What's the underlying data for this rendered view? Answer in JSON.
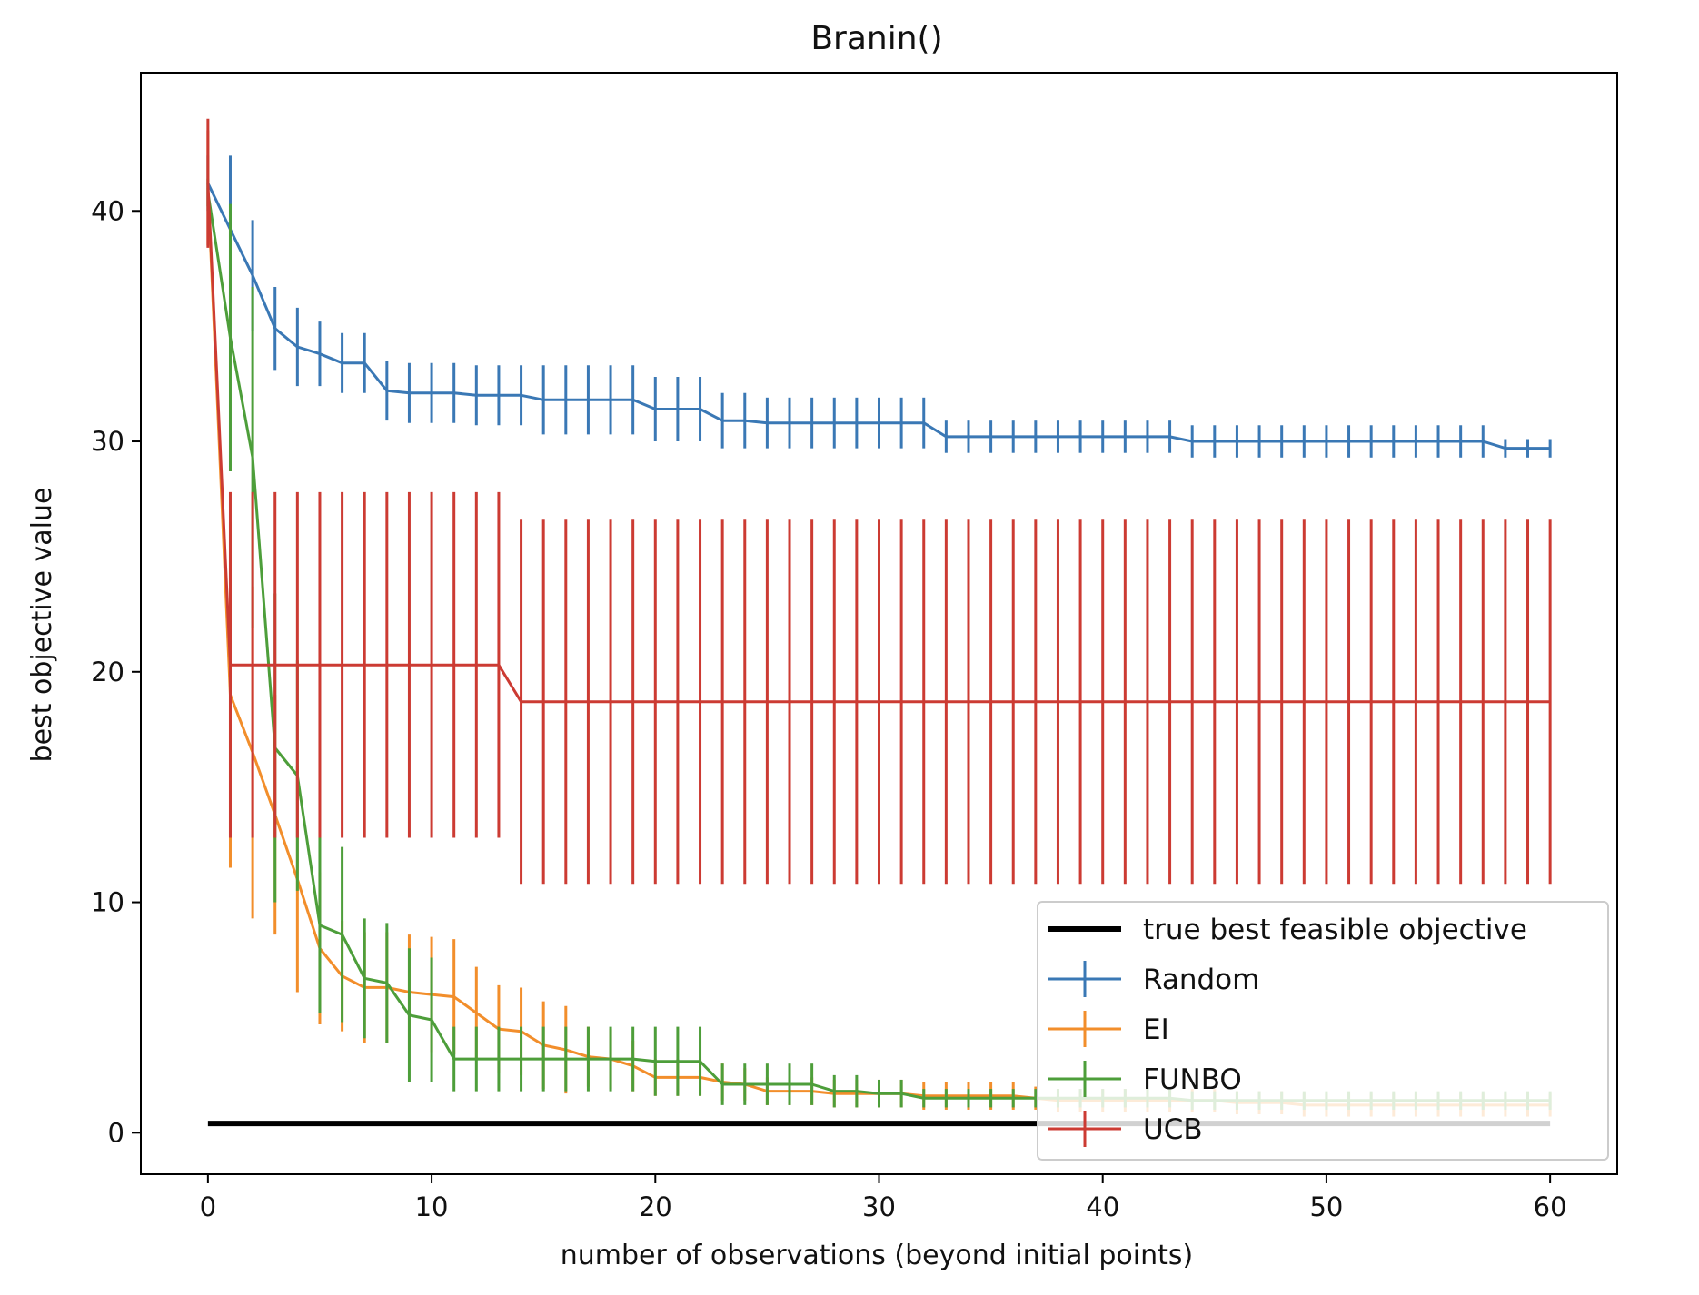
{
  "chart_data": {
    "type": "line",
    "title": "Branin()",
    "xlabel": "number of observations (beyond initial points)",
    "ylabel": "best objective value",
    "xlim": [
      -3,
      63
    ],
    "ylim": [
      -1.8,
      46
    ],
    "xticks": [
      0,
      10,
      20,
      30,
      40,
      50,
      60
    ],
    "yticks": [
      0,
      10,
      20,
      30,
      40
    ],
    "grid": false,
    "legend_position": "lower-right",
    "reference_line": {
      "name": "true best feasible objective",
      "y": 0.4,
      "x_range": [
        0,
        60
      ],
      "color": "#000000"
    },
    "series": [
      {
        "name": "Random",
        "color": "#3a78b5",
        "x": [
          0,
          1,
          2,
          3,
          4,
          5,
          6,
          7,
          8,
          9,
          10,
          11,
          12,
          13,
          14,
          15,
          16,
          17,
          18,
          19,
          20,
          21,
          22,
          23,
          24,
          25,
          26,
          27,
          28,
          29,
          30,
          31,
          32,
          33,
          34,
          35,
          36,
          37,
          38,
          39,
          40,
          41,
          42,
          43,
          44,
          45,
          46,
          47,
          48,
          49,
          50,
          51,
          52,
          53,
          54,
          55,
          56,
          57,
          58,
          59,
          60
        ],
        "y": [
          41.2,
          39.2,
          37.2,
          34.9,
          34.1,
          33.8,
          33.4,
          33.4,
          32.2,
          32.1,
          32.1,
          32.1,
          32.0,
          32.0,
          32.0,
          31.8,
          31.8,
          31.8,
          31.8,
          31.8,
          31.4,
          31.4,
          31.4,
          30.9,
          30.9,
          30.8,
          30.8,
          30.8,
          30.8,
          30.8,
          30.8,
          30.8,
          30.8,
          30.2,
          30.2,
          30.2,
          30.2,
          30.2,
          30.2,
          30.2,
          30.2,
          30.2,
          30.2,
          30.2,
          30.0,
          30.0,
          30.0,
          30.0,
          30.0,
          30.0,
          30.0,
          30.0,
          30.0,
          30.0,
          30.0,
          30.0,
          30.0,
          30.0,
          29.7,
          29.7,
          29.7
        ],
        "err": [
          1.2,
          3.2,
          2.4,
          1.8,
          1.7,
          1.4,
          1.3,
          1.3,
          1.3,
          1.3,
          1.3,
          1.3,
          1.3,
          1.3,
          1.3,
          1.5,
          1.5,
          1.5,
          1.5,
          1.5,
          1.4,
          1.4,
          1.4,
          1.2,
          1.2,
          1.1,
          1.1,
          1.1,
          1.1,
          1.1,
          1.1,
          1.1,
          1.1,
          0.7,
          0.7,
          0.7,
          0.7,
          0.7,
          0.7,
          0.7,
          0.7,
          0.7,
          0.7,
          0.7,
          0.7,
          0.7,
          0.7,
          0.7,
          0.7,
          0.7,
          0.7,
          0.7,
          0.7,
          0.7,
          0.7,
          0.7,
          0.7,
          0.7,
          0.4,
          0.4,
          0.4
        ]
      },
      {
        "name": "EI",
        "color": "#f28e2b",
        "x": [
          0,
          1,
          2,
          3,
          4,
          5,
          6,
          7,
          8,
          9,
          10,
          11,
          12,
          13,
          14,
          15,
          16,
          17,
          18,
          19,
          20,
          21,
          22,
          23,
          24,
          25,
          26,
          27,
          28,
          29,
          30,
          31,
          32,
          33,
          34,
          35,
          36,
          37,
          38,
          39,
          40,
          41,
          42,
          43,
          44,
          45,
          46,
          47,
          48,
          49,
          50,
          51,
          52,
          53,
          54,
          55,
          56,
          57,
          58,
          59,
          60
        ],
        "y": [
          41.0,
          19.0,
          16.5,
          13.8,
          11.0,
          8.0,
          6.8,
          6.3,
          6.3,
          6.1,
          6.0,
          5.9,
          5.2,
          4.5,
          4.4,
          3.8,
          3.6,
          3.3,
          3.2,
          2.9,
          2.4,
          2.4,
          2.4,
          2.2,
          2.1,
          1.8,
          1.8,
          1.8,
          1.7,
          1.7,
          1.7,
          1.7,
          1.6,
          1.6,
          1.6,
          1.6,
          1.6,
          1.5,
          1.4,
          1.4,
          1.4,
          1.4,
          1.4,
          1.4,
          1.4,
          1.4,
          1.3,
          1.3,
          1.3,
          1.2,
          1.2,
          1.2,
          1.2,
          1.2,
          1.2,
          1.2,
          1.2,
          1.2,
          1.2,
          1.2,
          1.2
        ],
        "err": [
          2.5,
          7.5,
          7.2,
          5.2,
          4.9,
          3.3,
          2.4,
          2.4,
          2.4,
          2.5,
          2.5,
          2.5,
          2.0,
          1.9,
          1.9,
          1.9,
          1.9,
          1.3,
          1.3,
          1.1,
          0.8,
          0.8,
          0.8,
          0.8,
          0.7,
          0.6,
          0.6,
          0.6,
          0.6,
          0.6,
          0.6,
          0.6,
          0.6,
          0.6,
          0.6,
          0.6,
          0.6,
          0.5,
          0.5,
          0.5,
          0.5,
          0.5,
          0.5,
          0.5,
          0.5,
          0.5,
          0.5,
          0.5,
          0.5,
          0.5,
          0.5,
          0.5,
          0.5,
          0.5,
          0.5,
          0.5,
          0.5,
          0.5,
          0.5,
          0.5,
          0.5
        ]
      },
      {
        "name": "FUNBO",
        "color": "#4d9e3a",
        "x": [
          0,
          1,
          2,
          3,
          4,
          5,
          6,
          7,
          8,
          9,
          10,
          11,
          12,
          13,
          14,
          15,
          16,
          17,
          18,
          19,
          20,
          21,
          22,
          23,
          24,
          25,
          26,
          27,
          28,
          29,
          30,
          31,
          32,
          33,
          34,
          35,
          36,
          37,
          38,
          39,
          40,
          41,
          42,
          43,
          44,
          45,
          46,
          47,
          48,
          49,
          50,
          51,
          52,
          53,
          54,
          55,
          56,
          57,
          58,
          59,
          60
        ],
        "y": [
          40.8,
          34.5,
          29.3,
          16.7,
          15.5,
          9.0,
          8.6,
          6.7,
          6.5,
          5.1,
          4.9,
          3.2,
          3.2,
          3.2,
          3.2,
          3.2,
          3.2,
          3.2,
          3.2,
          3.2,
          3.1,
          3.1,
          3.1,
          2.1,
          2.1,
          2.1,
          2.1,
          2.1,
          1.8,
          1.8,
          1.7,
          1.7,
          1.5,
          1.5,
          1.5,
          1.5,
          1.5,
          1.5,
          1.5,
          1.5,
          1.5,
          1.5,
          1.5,
          1.5,
          1.4,
          1.4,
          1.4,
          1.4,
          1.4,
          1.4,
          1.4,
          1.4,
          1.4,
          1.4,
          1.4,
          1.4,
          1.4,
          1.4,
          1.4,
          1.4,
          1.4
        ],
        "err": [
          0.6,
          5.8,
          7.4,
          6.7,
          5.0,
          3.8,
          3.8,
          2.6,
          2.6,
          2.9,
          2.7,
          1.4,
          1.4,
          1.4,
          1.4,
          1.4,
          1.4,
          1.4,
          1.4,
          1.4,
          1.5,
          1.5,
          1.5,
          0.9,
          0.9,
          0.9,
          0.9,
          0.9,
          0.7,
          0.7,
          0.6,
          0.6,
          0.4,
          0.4,
          0.4,
          0.4,
          0.4,
          0.4,
          0.4,
          0.4,
          0.4,
          0.4,
          0.4,
          0.4,
          0.4,
          0.4,
          0.4,
          0.4,
          0.4,
          0.4,
          0.4,
          0.4,
          0.4,
          0.4,
          0.4,
          0.4,
          0.4,
          0.4,
          0.4,
          0.4,
          0.4
        ]
      },
      {
        "name": "UCB",
        "color": "#cc3b33",
        "x": [
          0,
          1,
          2,
          3,
          4,
          5,
          6,
          7,
          8,
          9,
          10,
          11,
          12,
          13,
          14,
          15,
          16,
          17,
          18,
          19,
          20,
          21,
          22,
          23,
          24,
          25,
          26,
          27,
          28,
          29,
          30,
          31,
          32,
          33,
          34,
          35,
          36,
          37,
          38,
          39,
          40,
          41,
          42,
          43,
          44,
          45,
          46,
          47,
          48,
          49,
          50,
          51,
          52,
          53,
          54,
          55,
          56,
          57,
          58,
          59,
          60
        ],
        "y": [
          41.2,
          20.3,
          20.3,
          20.3,
          20.3,
          20.3,
          20.3,
          20.3,
          20.3,
          20.3,
          20.3,
          20.3,
          20.3,
          20.3,
          18.7,
          18.7,
          18.7,
          18.7,
          18.7,
          18.7,
          18.7,
          18.7,
          18.7,
          18.7,
          18.7,
          18.7,
          18.7,
          18.7,
          18.7,
          18.7,
          18.7,
          18.7,
          18.7,
          18.7,
          18.7,
          18.7,
          18.7,
          18.7,
          18.7,
          18.7,
          18.7,
          18.7,
          18.7,
          18.7,
          18.7,
          18.7,
          18.7,
          18.7,
          18.7,
          18.7,
          18.7,
          18.7,
          18.7,
          18.7,
          18.7,
          18.7,
          18.7,
          18.7,
          18.7,
          18.7,
          18.7
        ],
        "err": [
          2.8,
          7.5,
          7.5,
          7.5,
          7.5,
          7.5,
          7.5,
          7.5,
          7.5,
          7.5,
          7.5,
          7.5,
          7.5,
          7.5,
          7.9,
          7.9,
          7.9,
          7.9,
          7.9,
          7.9,
          7.9,
          7.9,
          7.9,
          7.9,
          7.9,
          7.9,
          7.9,
          7.9,
          7.9,
          7.9,
          7.9,
          7.9,
          7.9,
          7.9,
          7.9,
          7.9,
          7.9,
          7.9,
          7.9,
          7.9,
          7.9,
          7.9,
          7.9,
          7.9,
          7.9,
          7.9,
          7.9,
          7.9,
          7.9,
          7.9,
          7.9,
          7.9,
          7.9,
          7.9,
          7.9,
          7.9,
          7.9,
          7.9,
          7.9,
          7.9,
          7.9
        ]
      }
    ]
  }
}
